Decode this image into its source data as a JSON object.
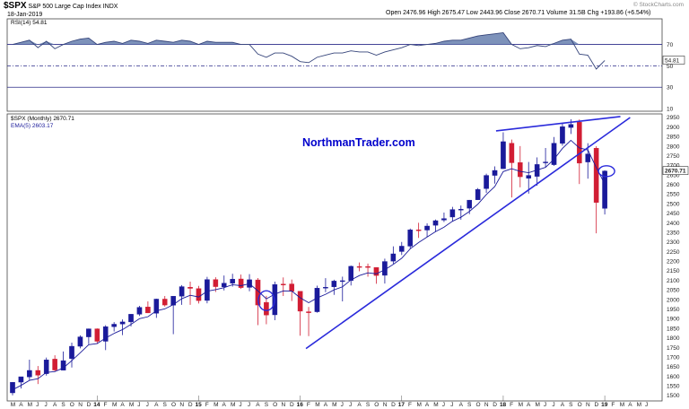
{
  "header": {
    "symbol": "$SPX",
    "name": "S&P 500 Large Cap Index",
    "exchange": "INDX",
    "date": "18-Jan-2019",
    "ohlc": "Open 2476.96  High 2675.47  Low 2443.96  Close 2670.71  Volume 31.5B  Chg +193.86 (+6.54%)",
    "watermark": "© StockCharts.com"
  },
  "rsi_panel": {
    "label": "RSI(14) 54.81",
    "current_value_tag": "54.81",
    "levels": [
      "70",
      "50",
      "30",
      "10"
    ]
  },
  "price_panel": {
    "label": "$SPX (Monthly) 2670.71",
    "ema_label": "EMA(5) 2603.17",
    "current_price_tag": "2670.71",
    "brand_text": "NorthmanTrader.com",
    "y_ticks": [
      "2950",
      "2900",
      "2850",
      "2800",
      "2750",
      "2700",
      "2650",
      "2600",
      "2550",
      "2500",
      "2450",
      "2400",
      "2350",
      "2300",
      "2250",
      "2200",
      "2150",
      "2100",
      "2050",
      "2000",
      "1950",
      "1900",
      "1850",
      "1800",
      "1750",
      "1700",
      "1650",
      "1600",
      "1550",
      "1500"
    ]
  },
  "x_axis": {
    "labels": [
      "M",
      "A",
      "M",
      "J",
      "J",
      "A",
      "S",
      "O",
      "N",
      "D",
      "14",
      "F",
      "M",
      "A",
      "M",
      "J",
      "J",
      "A",
      "S",
      "O",
      "N",
      "D",
      "15",
      "F",
      "M",
      "A",
      "M",
      "J",
      "J",
      "A",
      "S",
      "O",
      "N",
      "D",
      "16",
      "F",
      "M",
      "A",
      "M",
      "J",
      "J",
      "A",
      "S",
      "O",
      "N",
      "D",
      "17",
      "F",
      "M",
      "A",
      "M",
      "J",
      "J",
      "A",
      "S",
      "O",
      "N",
      "D",
      "18",
      "F",
      "M",
      "A",
      "M",
      "J",
      "J",
      "A",
      "S",
      "O",
      "N",
      "D",
      "19",
      "F",
      "M",
      "A",
      "M",
      "J"
    ],
    "year_labels": [
      "14",
      "15",
      "16",
      "17",
      "18",
      "19"
    ]
  },
  "colors": {
    "up": "#1a1a9a",
    "down": "#d11d33",
    "trendline": "#2a2adb",
    "ema": "#1a1a9a",
    "rsi_fill": "#6f86b3",
    "rsi_line": "#35447a",
    "brand": "#0000cc"
  },
  "chart_data": [
    {
      "type": "line",
      "title": "RSI(14) 54.81",
      "ylim": [
        0,
        100
      ],
      "reference_levels": [
        70,
        50,
        30
      ],
      "categories": [
        "Mar 2013",
        "Apr 2013",
        "May 2013",
        "Jun 2013",
        "Jul 2013",
        "Aug 2013",
        "Sep 2013",
        "Oct 2013",
        "Nov 2013",
        "Dec 2013",
        "Jan 2014",
        "Feb 2014",
        "Mar 2014",
        "Apr 2014",
        "May 2014",
        "Jun 2014",
        "Jul 2014",
        "Aug 2014",
        "Sep 2014",
        "Oct 2014",
        "Nov 2014",
        "Dec 2014",
        "Jan 2015",
        "Feb 2015",
        "Mar 2015",
        "Apr 2015",
        "May 2015",
        "Jun 2015",
        "Jul 2015",
        "Aug 2015",
        "Sep 2015",
        "Oct 2015",
        "Nov 2015",
        "Dec 2015",
        "Jan 2016",
        "Feb 2016",
        "Mar 2016",
        "Apr 2016",
        "May 2016",
        "Jun 2016",
        "Jul 2016",
        "Aug 2016",
        "Sep 2016",
        "Oct 2016",
        "Nov 2016",
        "Dec 2016",
        "Jan 2017",
        "Feb 2017",
        "Mar 2017",
        "Apr 2017",
        "May 2017",
        "Jun 2017",
        "Jul 2017",
        "Aug 2017",
        "Sep 2017",
        "Oct 2017",
        "Nov 2017",
        "Dec 2017",
        "Jan 2018",
        "Feb 2018",
        "Mar 2018",
        "Apr 2018",
        "May 2018",
        "Jun 2018",
        "Jul 2018",
        "Aug 2018",
        "Sep 2018",
        "Oct 2018",
        "Nov 2018",
        "Dec 2018",
        "Jan 2019"
      ],
      "series": [
        {
          "values": [
            70,
            72,
            74,
            67,
            73,
            66,
            70,
            73,
            75,
            76,
            70,
            72,
            73,
            71,
            74,
            73,
            71,
            74,
            73,
            72,
            74,
            73,
            70,
            73,
            72,
            72,
            72,
            70,
            70,
            61,
            58,
            62,
            62,
            59,
            54,
            53,
            58,
            60,
            62,
            62,
            64,
            63,
            63,
            60,
            63,
            65,
            67,
            70,
            69,
            70,
            71,
            73,
            74,
            74,
            76,
            78,
            79,
            80,
            81,
            70,
            66,
            67,
            69,
            68,
            71,
            74,
            75,
            61,
            60,
            47,
            55
          ]
        }
      ]
    },
    {
      "type": "candlestick",
      "title": "$SPX (Monthly) 2670.71",
      "ylim": [
        1500,
        2950
      ],
      "categories": [
        "Mar 2013",
        "Apr 2013",
        "May 2013",
        "Jun 2013",
        "Jul 2013",
        "Aug 2013",
        "Sep 2013",
        "Oct 2013",
        "Nov 2013",
        "Dec 2013",
        "Jan 2014",
        "Feb 2014",
        "Mar 2014",
        "Apr 2014",
        "May 2014",
        "Jun 2014",
        "Jul 2014",
        "Aug 2014",
        "Sep 2014",
        "Oct 2014",
        "Nov 2014",
        "Dec 2014",
        "Jan 2015",
        "Feb 2015",
        "Mar 2015",
        "Apr 2015",
        "May 2015",
        "Jun 2015",
        "Jul 2015",
        "Aug 2015",
        "Sep 2015",
        "Oct 2015",
        "Nov 2015",
        "Dec 2015",
        "Jan 2016",
        "Feb 2016",
        "Mar 2016",
        "Apr 2016",
        "May 2016",
        "Jun 2016",
        "Jul 2016",
        "Aug 2016",
        "Sep 2016",
        "Oct 2016",
        "Nov 2016",
        "Dec 2016",
        "Jan 2017",
        "Feb 2017",
        "Mar 2017",
        "Apr 2017",
        "May 2017",
        "Jun 2017",
        "Jul 2017",
        "Aug 2017",
        "Sep 2017",
        "Oct 2017",
        "Nov 2017",
        "Dec 2017",
        "Jan 2018",
        "Feb 2018",
        "Mar 2018",
        "Apr 2018",
        "May 2018",
        "Jun 2018",
        "Jul 2018",
        "Aug 2018",
        "Sep 2018",
        "Oct 2018",
        "Nov 2018",
        "Dec 2018",
        "Jan 2019"
      ],
      "open": [
        1514,
        1570,
        1597,
        1631,
        1614,
        1690,
        1632,
        1693,
        1757,
        1806,
        1848,
        1783,
        1859,
        1873,
        1884,
        1924,
        1962,
        1929,
        2003,
        1971,
        2018,
        2065,
        2058,
        1996,
        2105,
        2067,
        2086,
        2108,
        2064,
        2103,
        1986,
        1921,
        2081,
        2082,
        2044,
        1937,
        1937,
        2060,
        2067,
        2097,
        2100,
        2173,
        2173,
        2168,
        2127,
        2201,
        2251,
        2279,
        2364,
        2363,
        2388,
        2415,
        2431,
        2470,
        2477,
        2521,
        2579,
        2648,
        2683,
        2816,
        2715,
        2633,
        2643,
        2718,
        2704,
        2815,
        2898,
        2926,
        2718,
        2790,
        2476
      ],
      "high": [
        1570,
        1597,
        1687,
        1654,
        1698,
        1710,
        1730,
        1776,
        1814,
        1849,
        1850,
        1867,
        1883,
        1897,
        1925,
        1968,
        1991,
        2005,
        2019,
        2018,
        2076,
        2094,
        2072,
        2119,
        2117,
        2126,
        2135,
        2131,
        2133,
        2113,
        2020,
        2094,
        2116,
        2105,
        2044,
        1962,
        2073,
        2112,
        2104,
        2120,
        2178,
        2194,
        2188,
        2169,
        2214,
        2278,
        2301,
        2371,
        2401,
        2398,
        2418,
        2454,
        2484,
        2491,
        2520,
        2582,
        2657,
        2695,
        2873,
        2835,
        2801,
        2718,
        2742,
        2791,
        2848,
        2917,
        2941,
        2940,
        2816,
        2800,
        2675
      ],
      "low": [
        1501,
        1537,
        1581,
        1560,
        1604,
        1627,
        1633,
        1646,
        1746,
        1768,
        1770,
        1737,
        1834,
        1815,
        1860,
        1915,
        1930,
        1905,
        1964,
        1820,
        1973,
        1973,
        1980,
        1981,
        2040,
        2048,
        2068,
        2056,
        2044,
        1867,
        1872,
        1893,
        2019,
        1993,
        1812,
        1810,
        1932,
        2039,
        2025,
        1991,
        2074,
        2148,
        2120,
        2083,
        2084,
        2187,
        2233,
        2267,
        2322,
        2328,
        2353,
        2405,
        2407,
        2417,
        2446,
        2520,
        2557,
        2605,
        2682,
        2533,
        2586,
        2553,
        2594,
        2691,
        2698,
        2803,
        2864,
        2603,
        2631,
        2346,
        2444
      ],
      "close": [
        1569,
        1598,
        1631,
        1606,
        1686,
        1633,
        1682,
        1757,
        1806,
        1848,
        1783,
        1859,
        1872,
        1884,
        1924,
        1960,
        1931,
        2003,
        1972,
        2018,
        2068,
        2059,
        1995,
        2105,
        2068,
        2086,
        2107,
        2063,
        2104,
        1972,
        1920,
        2079,
        2080,
        2044,
        1940,
        1932,
        2060,
        2065,
        2097,
        2099,
        2174,
        2171,
        2168,
        2126,
        2199,
        2239,
        2279,
        2364,
        2363,
        2384,
        2412,
        2423,
        2470,
        2472,
        2519,
        2575,
        2648,
        2674,
        2824,
        2714,
        2641,
        2648,
        2705,
        2718,
        2816,
        2902,
        2914,
        2712,
        2760,
        2507,
        2671
      ],
      "ema": {
        "name": "EMA(5) 2603.17",
        "values": [
          1530,
          1553,
          1579,
          1588,
          1621,
          1625,
          1644,
          1682,
          1723,
          1765,
          1771,
          1800,
          1824,
          1844,
          1871,
          1901,
          1911,
          1942,
          1952,
          1974,
          2005,
          2023,
          2014,
          2044,
          2052,
          2063,
          2078,
          2073,
          2083,
          2046,
          2004,
          2029,
          2046,
          2045,
          2010,
          1984,
          2009,
          2028,
          2051,
          2067,
          2103,
          2126,
          2140,
          2135,
          2156,
          2184,
          2216,
          2265,
          2298,
          2327,
          2355,
          2378,
          2409,
          2430,
          2460,
          2498,
          2548,
          2590,
          2668,
          2683,
          2669,
          2662,
          2676,
          2690,
          2732,
          2789,
          2831,
          2791,
          2781,
          2689,
          2603
        ]
      }
    }
  ]
}
